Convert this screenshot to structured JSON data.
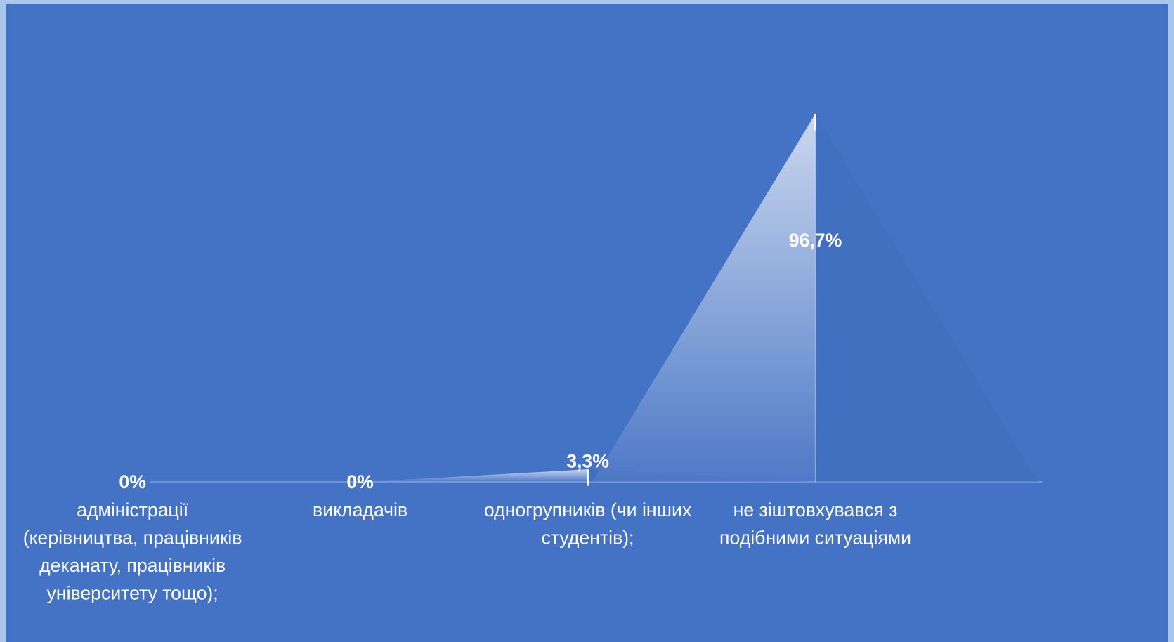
{
  "chart_data": {
    "type": "triangle",
    "categories": [
      "адміністрації (керівництва, працівників деканату, працівників університету тощо);",
      "викладачів",
      "одногрупників (чи інших студентів);",
      "не зіштовхувався з подібними ситуаціями"
    ],
    "values": [
      0,
      0,
      3.3,
      96.7
    ],
    "value_labels": [
      "0%",
      "0%",
      "3,3%",
      "96,7%"
    ],
    "color": "#ffffff"
  }
}
